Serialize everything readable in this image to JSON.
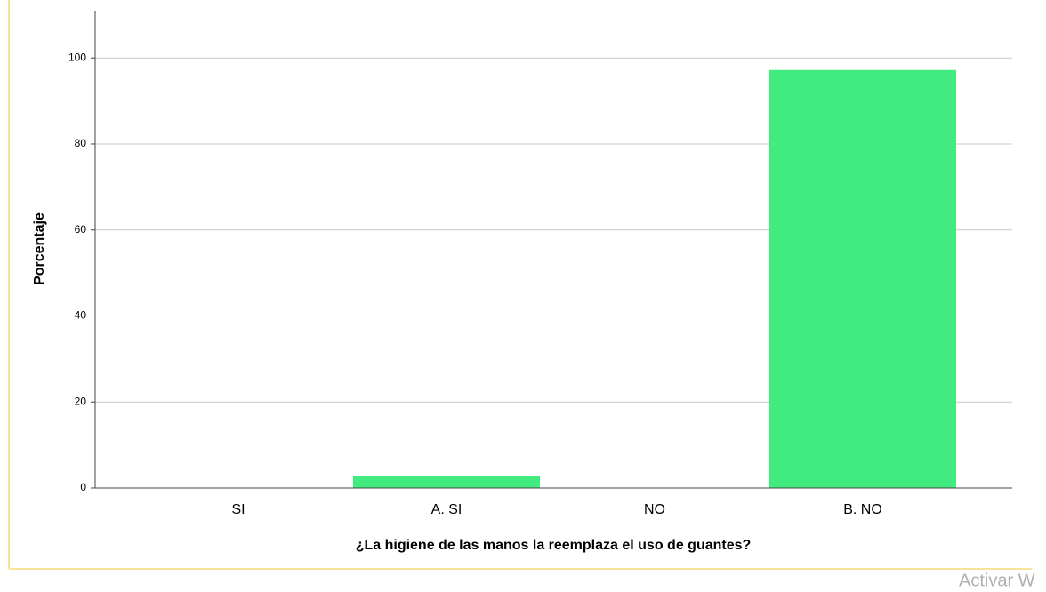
{
  "chart_data": {
    "type": "bar",
    "x_label": "¿La higiene de las manos la reemplaza el uso de guantes?",
    "y_label": "Porcentaje",
    "categories": [
      "SI",
      "A. SI",
      "NO",
      "B. NO"
    ],
    "values": [
      0,
      2.8,
      0,
      97.2
    ],
    "color": "#42eb7f",
    "ylim": [
      0,
      111
    ],
    "yticks": [
      0,
      20,
      40,
      60,
      80,
      100
    ],
    "grid": true
  },
  "watermark": "Activar W"
}
